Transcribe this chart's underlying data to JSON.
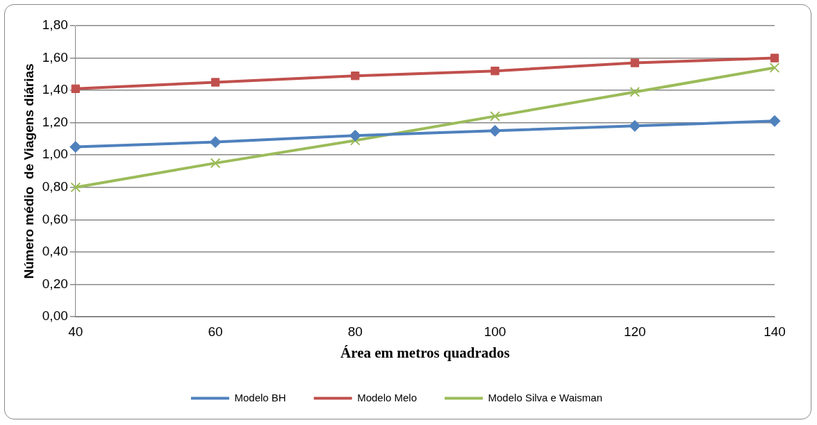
{
  "chart_data": {
    "type": "line",
    "xlabel": "Área em metros quadrados",
    "ylabel": "Número médio  de Viagens diárias",
    "categories": [
      "40",
      "60",
      "80",
      "100",
      "120",
      "140"
    ],
    "series": [
      {
        "name": "Modelo BH",
        "color": "#4f81bd",
        "marker": "diamond",
        "values": [
          1.05,
          1.08,
          1.12,
          1.15,
          1.18,
          1.21
        ]
      },
      {
        "name": "Modelo Melo",
        "color": "#c0504d",
        "marker": "square",
        "values": [
          1.41,
          1.45,
          1.49,
          1.52,
          1.57,
          1.6
        ]
      },
      {
        "name": "Modelo Silva e Waisman",
        "color": "#9bbb59",
        "marker": "cross",
        "values": [
          0.8,
          0.95,
          1.09,
          1.24,
          1.39,
          1.54
        ]
      }
    ],
    "ylim": [
      0,
      1.8
    ],
    "yticks": [
      {
        "value": 0,
        "label": "0,00"
      },
      {
        "value": 0.2,
        "label": "0,20"
      },
      {
        "value": 0.4,
        "label": "0,40"
      },
      {
        "value": 0.6,
        "label": "0,60"
      },
      {
        "value": 0.8,
        "label": "0,80"
      },
      {
        "value": 1,
        "label": "1,00"
      },
      {
        "value": 1.2,
        "label": "1,20"
      },
      {
        "value": 1.4,
        "label": "1,40"
      },
      {
        "value": 1.6,
        "label": "1,60"
      },
      {
        "value": 1.8,
        "label": "1,80"
      }
    ],
    "grid": "y",
    "legend": "bottom"
  }
}
